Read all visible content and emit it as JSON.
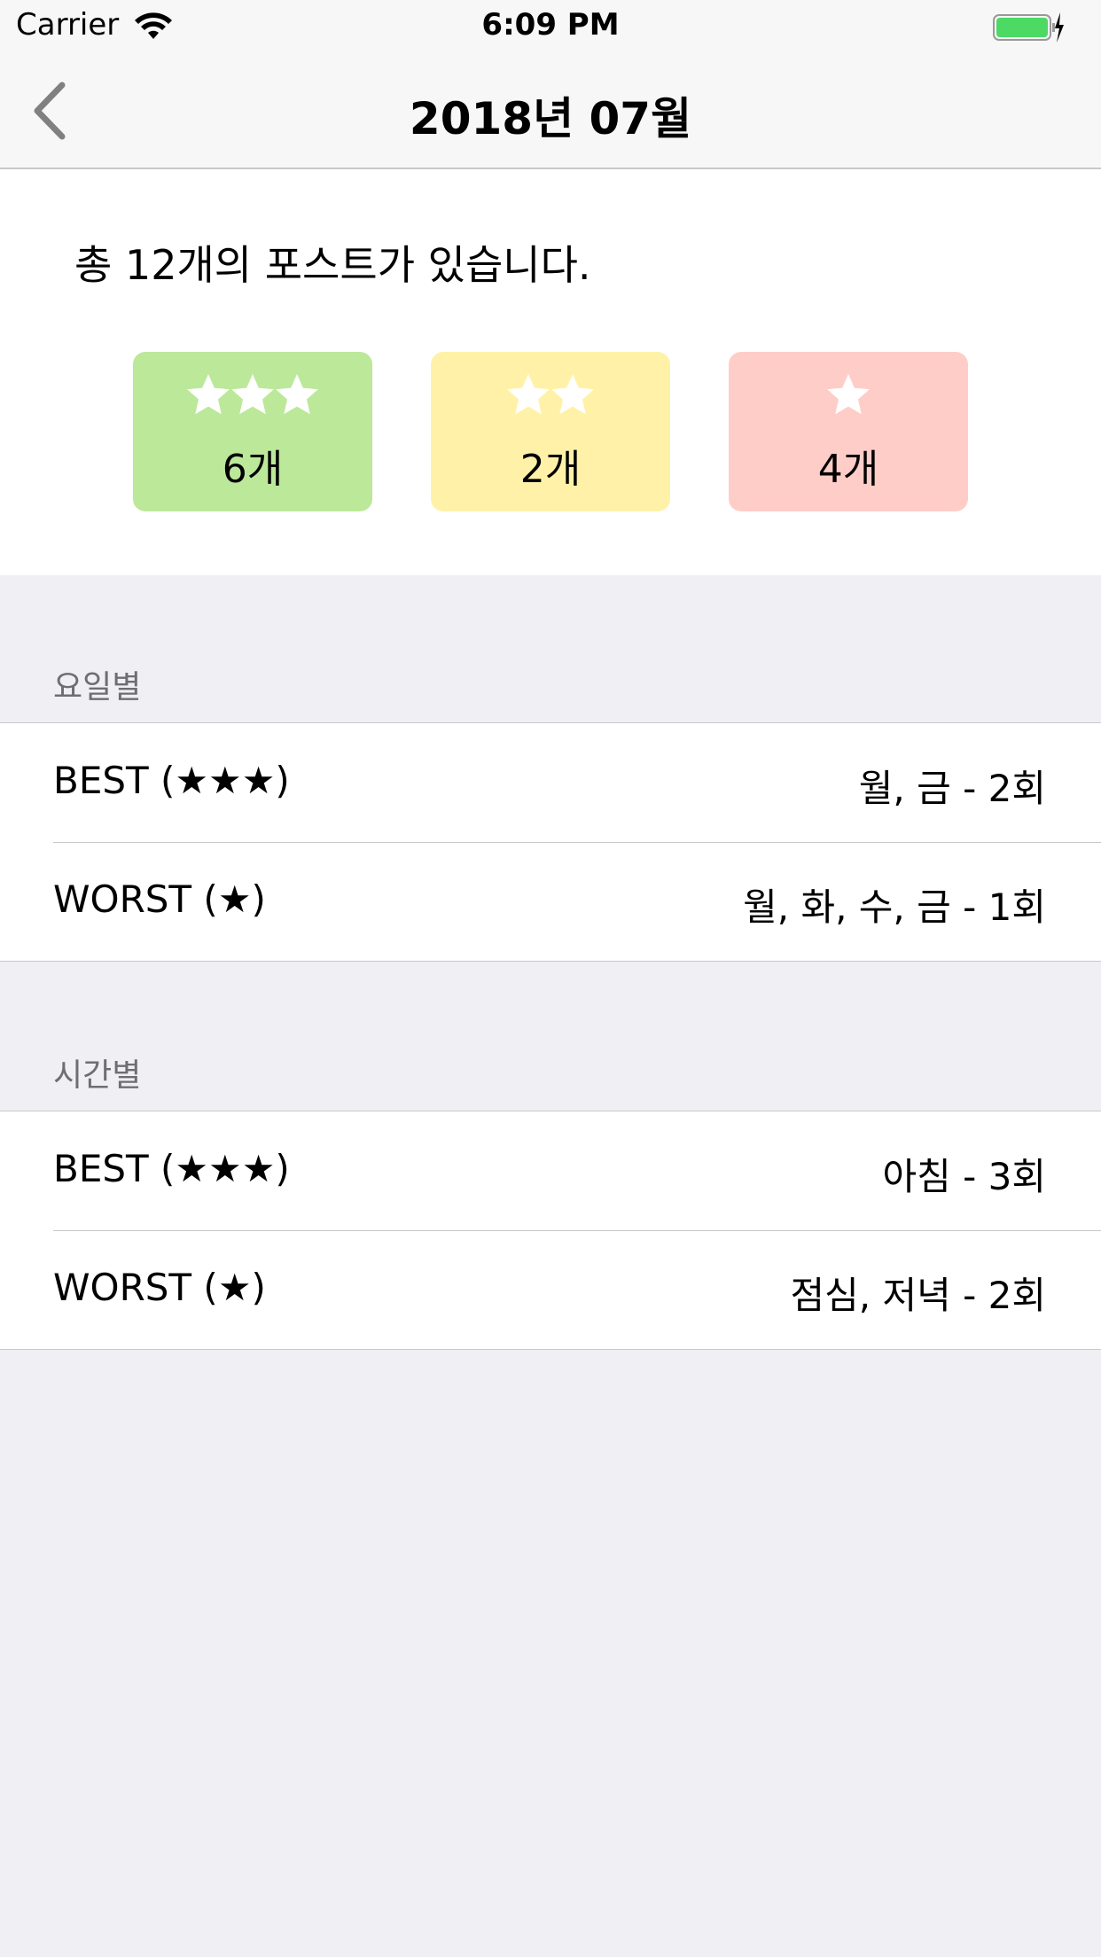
{
  "status_bar": {
    "carrier": "Carrier",
    "time": "6:09 PM",
    "battery_color": "#4cd964"
  },
  "nav": {
    "title": "2018년 07월",
    "back_icon": "chevron-left-icon"
  },
  "summary": {
    "text": "총 12개의 포스트가 있습니다.",
    "cards": [
      {
        "stars": 3,
        "count": "6개",
        "color": "#bce89a"
      },
      {
        "stars": 2,
        "count": "2개",
        "color": "#fff2a8"
      },
      {
        "stars": 1,
        "count": "4개",
        "color": "#ffcdc8"
      }
    ]
  },
  "sections": [
    {
      "header": "요일별",
      "rows": [
        {
          "label": "BEST (★★★)",
          "value": "월, 금 - 2회"
        },
        {
          "label": "WORST (★)",
          "value": "월, 화, 수, 금 - 1회"
        }
      ]
    },
    {
      "header": "시간별",
      "rows": [
        {
          "label": "BEST (★★★)",
          "value": "아침 - 3회"
        },
        {
          "label": "WORST (★)",
          "value": "점심, 저녁 - 2회"
        }
      ]
    }
  ]
}
